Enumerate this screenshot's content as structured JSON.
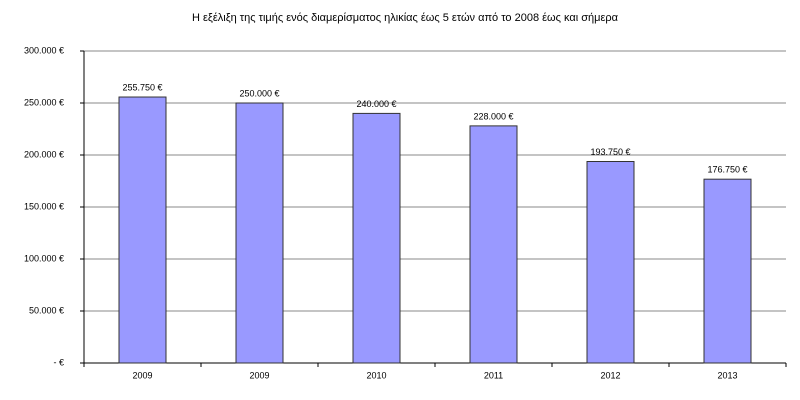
{
  "chart_data": {
    "type": "bar",
    "title": "Η εξέλιξη της τιμής ενός διαμερίσματος ηλικίας έως 5 ετών από το 2008 έως και σήμερα",
    "categories": [
      "2009",
      "2009",
      "2010",
      "2011",
      "2012",
      "2013"
    ],
    "values": [
      255750,
      250000,
      240000,
      228000,
      193750,
      176750
    ],
    "value_labels": [
      "255.750 €",
      "250.000 €",
      "240.000 €",
      "228.000 €",
      "193.750 €",
      "176.750 €"
    ],
    "color": "#9999ff",
    "ylim": [
      0,
      300000
    ],
    "yticks": [
      {
        "value": 0,
        "label": "- €"
      },
      {
        "value": 50000,
        "label": "50.000 €"
      },
      {
        "value": 100000,
        "label": "100.000 €"
      },
      {
        "value": 150000,
        "label": "150.000 €"
      },
      {
        "value": 200000,
        "label": "200.000 €"
      },
      {
        "value": 250000,
        "label": "250.000 €"
      },
      {
        "value": 300000,
        "label": "300.000 €"
      }
    ],
    "grid": true
  }
}
